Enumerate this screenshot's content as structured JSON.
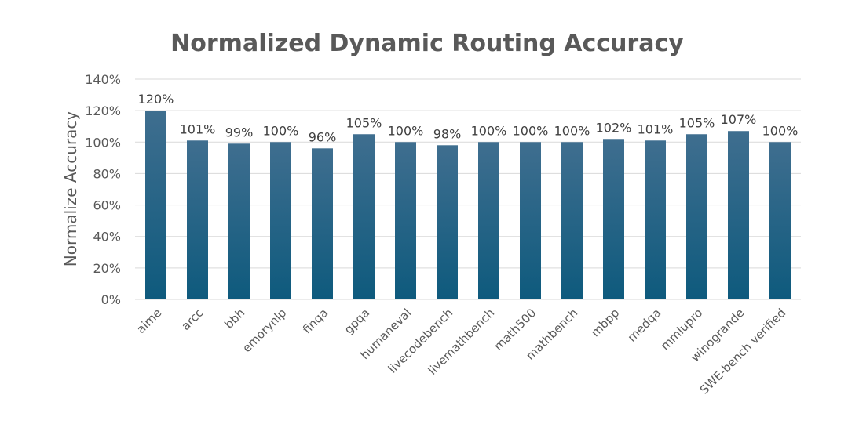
{
  "chart_data": {
    "type": "bar",
    "title": "Normalized Dynamic Routing Accuracy",
    "xlabel": "",
    "ylabel": "Normalize Accuracy",
    "categories": [
      "aime",
      "arcc",
      "bbh",
      "emorynlp",
      "finqa",
      "gpqa",
      "humaneval",
      "livecodebench",
      "livemathbench",
      "math500",
      "mathbench",
      "mbpp",
      "medqa",
      "mmlupro",
      "winogrande",
      "SWE-bench verified"
    ],
    "values": [
      120,
      101,
      99,
      100,
      96,
      105,
      100,
      98,
      100,
      100,
      100,
      102,
      101,
      105,
      107,
      100
    ],
    "data_labels": [
      "120%",
      "101%",
      "99%",
      "100%",
      "96%",
      "105%",
      "100%",
      "98%",
      "100%",
      "100%",
      "100%",
      "102%",
      "101%",
      "105%",
      "107%",
      "100%"
    ],
    "ylim": [
      0,
      140
    ],
    "yticks": [
      "0%",
      "20%",
      "40%",
      "60%",
      "80%",
      "100%",
      "120%",
      "140%"
    ],
    "grid": true,
    "legend": "none",
    "colors": {
      "bar_top": "#3f6e8f",
      "bar_bottom": "#0e5a7d",
      "grid": "#d9d9d9",
      "text": "#595959"
    }
  }
}
